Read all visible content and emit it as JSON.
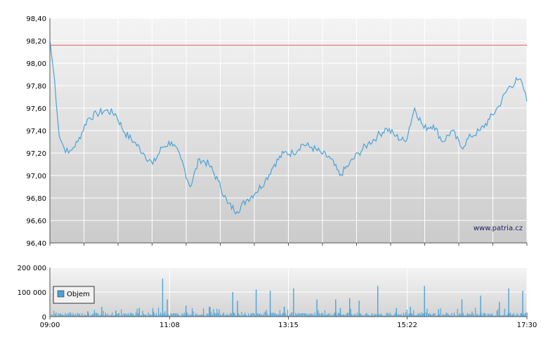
{
  "chart_data": [
    {
      "type": "line",
      "ylim": [
        96.4,
        98.4
      ],
      "y_ticks": [
        "96,40",
        "96,60",
        "96,80",
        "97,00",
        "97,20",
        "97,40",
        "97,60",
        "97,80",
        "98,00",
        "98,20",
        "98,40"
      ],
      "y_tick_values": [
        96.4,
        96.6,
        96.8,
        97.0,
        97.2,
        97.4,
        97.6,
        97.8,
        98.0,
        98.2,
        98.4
      ],
      "x_range": [
        "09:00",
        "17:30"
      ],
      "reference_line": {
        "value": 98.16,
        "color": "#e06060"
      },
      "series_color": "#4aa3d8",
      "grid": true,
      "watermark": "www.patria.cz",
      "series": [
        {
          "x": [
            "09:00",
            "09:05",
            "09:10",
            "09:15",
            "09:20",
            "09:25",
            "09:30",
            "09:40",
            "09:50",
            "10:00",
            "10:10",
            "10:20",
            "10:30",
            "10:40",
            "10:50",
            "11:00",
            "11:10",
            "11:20",
            "11:30",
            "11:40",
            "11:50",
            "12:00",
            "12:10",
            "12:20",
            "12:30",
            "12:40",
            "12:50",
            "13:00",
            "13:10",
            "13:20",
            "13:30",
            "13:40",
            "13:50",
            "14:00",
            "14:10",
            "14:20",
            "14:30",
            "14:40",
            "14:50",
            "15:00",
            "15:10",
            "15:20",
            "15:30",
            "15:40",
            "15:50",
            "16:00",
            "16:10",
            "16:20",
            "16:30",
            "16:40",
            "16:50",
            "17:00",
            "17:10",
            "17:20",
            "17:25",
            "17:30"
          ],
          "values": [
            98.2,
            97.85,
            97.35,
            97.25,
            97.2,
            97.25,
            97.3,
            97.5,
            97.55,
            97.58,
            97.55,
            97.38,
            97.3,
            97.2,
            97.1,
            97.25,
            97.3,
            97.15,
            96.9,
            97.15,
            97.1,
            96.95,
            96.75,
            96.68,
            96.78,
            96.85,
            96.95,
            97.1,
            97.2,
            97.2,
            97.28,
            97.25,
            97.2,
            97.15,
            97.0,
            97.1,
            97.2,
            97.28,
            97.35,
            97.42,
            97.35,
            97.3,
            97.6,
            97.42,
            97.45,
            97.3,
            97.4,
            97.25,
            97.35,
            97.4,
            97.5,
            97.62,
            97.78,
            97.85,
            97.82,
            97.66
          ]
        }
      ]
    },
    {
      "type": "bar",
      "ylim": [
        0,
        200000
      ],
      "y_ticks": [
        "0",
        "100 000",
        "200 000"
      ],
      "y_tick_values": [
        0,
        100000,
        200000
      ],
      "x_ticks": [
        "09:00",
        "11:08",
        "13:15",
        "15:22",
        "17:30"
      ],
      "series": [
        {
          "name": "Objem",
          "color": "#4aa3d8",
          "spikes": [
            {
              "x": "09:40",
              "value": 22000
            },
            {
              "x": "09:55",
              "value": 40000
            },
            {
              "x": "10:10",
              "value": 25000
            },
            {
              "x": "10:35",
              "value": 35000
            },
            {
              "x": "10:50",
              "value": 20000
            },
            {
              "x": "11:00",
              "value": 155000
            },
            {
              "x": "11:05",
              "value": 70000
            },
            {
              "x": "11:25",
              "value": 45000
            },
            {
              "x": "11:50",
              "value": 40000
            },
            {
              "x": "12:15",
              "value": 100000
            },
            {
              "x": "12:20",
              "value": 65000
            },
            {
              "x": "12:40",
              "value": 110000
            },
            {
              "x": "12:55",
              "value": 105000
            },
            {
              "x": "13:10",
              "value": 40000
            },
            {
              "x": "13:20",
              "value": 115000
            },
            {
              "x": "13:45",
              "value": 70000
            },
            {
              "x": "14:05",
              "value": 70000
            },
            {
              "x": "14:10",
              "value": 35000
            },
            {
              "x": "14:20",
              "value": 75000
            },
            {
              "x": "14:30",
              "value": 65000
            },
            {
              "x": "14:50",
              "value": 125000
            },
            {
              "x": "15:10",
              "value": 35000
            },
            {
              "x": "15:25",
              "value": 40000
            },
            {
              "x": "15:40",
              "value": 125000
            },
            {
              "x": "15:55",
              "value": 30000
            },
            {
              "x": "16:20",
              "value": 70000
            },
            {
              "x": "16:40",
              "value": 85000
            },
            {
              "x": "17:00",
              "value": 60000
            },
            {
              "x": "17:10",
              "value": 115000
            },
            {
              "x": "17:25",
              "value": 105000
            }
          ]
        }
      ]
    }
  ]
}
